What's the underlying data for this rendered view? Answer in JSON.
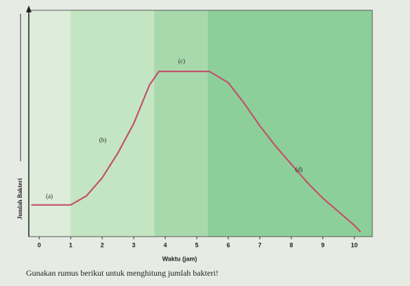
{
  "chart_data": {
    "type": "line",
    "x_label": "Waktu (jam)",
    "y_label": "Jumlah Bakteri",
    "caption": "Gunakan rumus berikut untuk menghitung jumlah bakteri!",
    "annotations": [
      "(a)",
      "(b)",
      "(c)",
      "(d)"
    ],
    "x": [
      -0.25,
      0,
      0.5,
      1,
      1.5,
      2,
      2.5,
      3,
      3.5,
      3.8,
      4,
      4.5,
      5,
      5.4,
      6,
      6.5,
      7,
      7.5,
      8,
      8.5,
      9,
      9.5,
      10,
      10.2
    ],
    "series": [
      {
        "color": "#c2506a",
        "values": [
          14,
          14,
          14,
          14,
          18,
          26,
          37,
          50,
          67,
          73,
          73,
          73,
          73,
          73,
          68,
          59,
          49,
          40,
          32,
          24,
          17,
          11,
          5,
          2
        ]
      }
    ],
    "xlim": [
      -0.33,
      10.57
    ],
    "ylim": [
      0,
      100
    ],
    "xticks": [
      0,
      1,
      2,
      3,
      4,
      5,
      6,
      7,
      8,
      9,
      10
    ]
  }
}
